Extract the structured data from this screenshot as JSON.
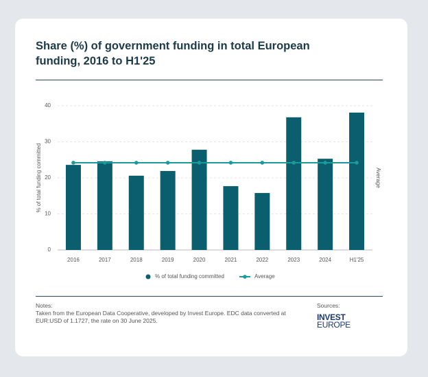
{
  "chart_data": {
    "type": "bar",
    "title": "Share (%) of government funding in total European funding, 2016 to H1'25",
    "categories": [
      "2016",
      "2017",
      "2018",
      "2019",
      "2020",
      "2021",
      "2022",
      "2023",
      "2024",
      "H1'25"
    ],
    "series": [
      {
        "name": "% of total funding committed",
        "type": "bar",
        "color": "#0b5e6e",
        "values": [
          23.6,
          24.6,
          20.6,
          21.9,
          27.8,
          17.7,
          15.8,
          36.8,
          25.3,
          38.1
        ]
      },
      {
        "name": "Average",
        "type": "line",
        "color": "#1a9a9a",
        "values": [
          24.2,
          24.2,
          24.2,
          24.2,
          24.2,
          24.2,
          24.2,
          24.2,
          24.2,
          24.2
        ]
      }
    ],
    "ylim": [
      0,
      40
    ],
    "yticks": [
      0,
      10,
      20,
      30,
      40
    ],
    "grid": true,
    "y_label": "% of total funding committed",
    "y2_label": "Average"
  },
  "notes": {
    "heading": "Notes:",
    "text": "Taken from the European Data Cooperative, developed by Invest Europe. EDC data converted at EUR:USD of 1.1727, the rate on 30 June 2025."
  },
  "sources": {
    "heading": "Sources:",
    "logo_top": "INVEST",
    "logo_bottom": "EUROPE"
  }
}
